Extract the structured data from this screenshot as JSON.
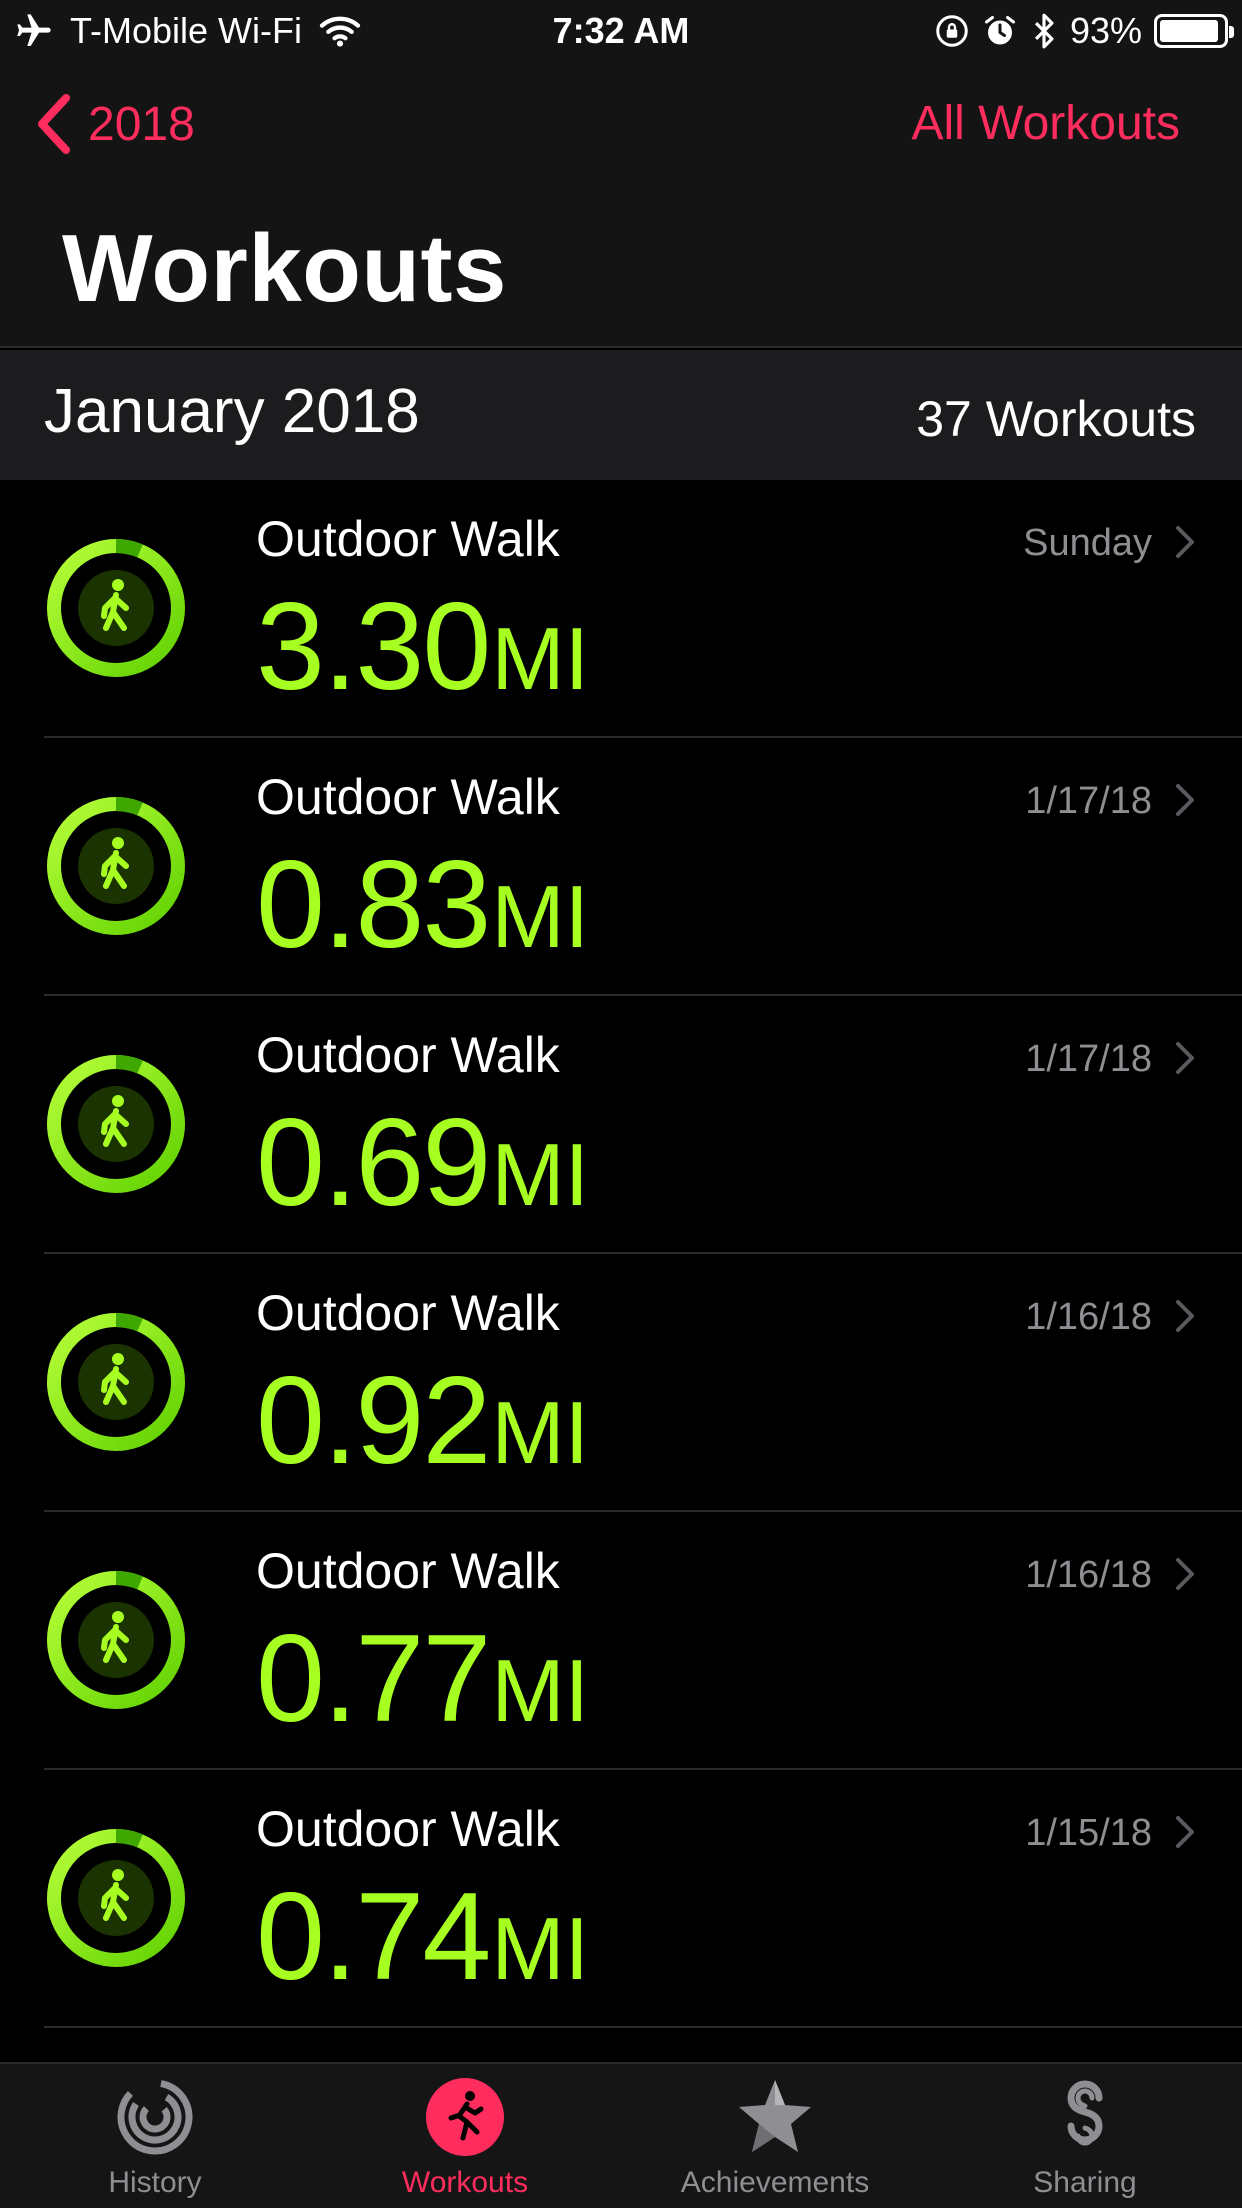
{
  "status_bar": {
    "carrier": "T-Mobile Wi-Fi",
    "time": "7:32 AM",
    "battery": "93%",
    "battery_level": 0.93,
    "icons": [
      "airplane-icon",
      "wifi-icon",
      "rotation-lock-icon",
      "alarm-icon",
      "bluetooth-icon",
      "battery-icon"
    ]
  },
  "nav": {
    "back_label": "2018",
    "right_label": "All Workouts",
    "title": "Workouts"
  },
  "section": {
    "month": "January 2018",
    "count": "37 Workouts"
  },
  "workouts": [
    {
      "title": "Outdoor Walk",
      "value": "3.30",
      "unit": "MI",
      "date": "Sunday"
    },
    {
      "title": "Outdoor Walk",
      "value": "0.83",
      "unit": "MI",
      "date": "1/17/18"
    },
    {
      "title": "Outdoor Walk",
      "value": "0.69",
      "unit": "MI",
      "date": "1/17/18"
    },
    {
      "title": "Outdoor Walk",
      "value": "0.92",
      "unit": "MI",
      "date": "1/16/18"
    },
    {
      "title": "Outdoor Walk",
      "value": "0.77",
      "unit": "MI",
      "date": "1/16/18"
    },
    {
      "title": "Outdoor Walk",
      "value": "0.74",
      "unit": "MI",
      "date": "1/15/18"
    }
  ],
  "tabs": [
    {
      "label": "History",
      "icon": "history-icon"
    },
    {
      "label": "Workouts",
      "icon": "workouts-icon",
      "active": true
    },
    {
      "label": "Achievements",
      "icon": "achievements-icon"
    },
    {
      "label": "Sharing",
      "icon": "sharing-icon"
    }
  ],
  "colors": {
    "accent": "#ff2d5e",
    "metric_green": "#a6ff20",
    "background": "#000000",
    "secondary_text": "#8e8e93"
  }
}
